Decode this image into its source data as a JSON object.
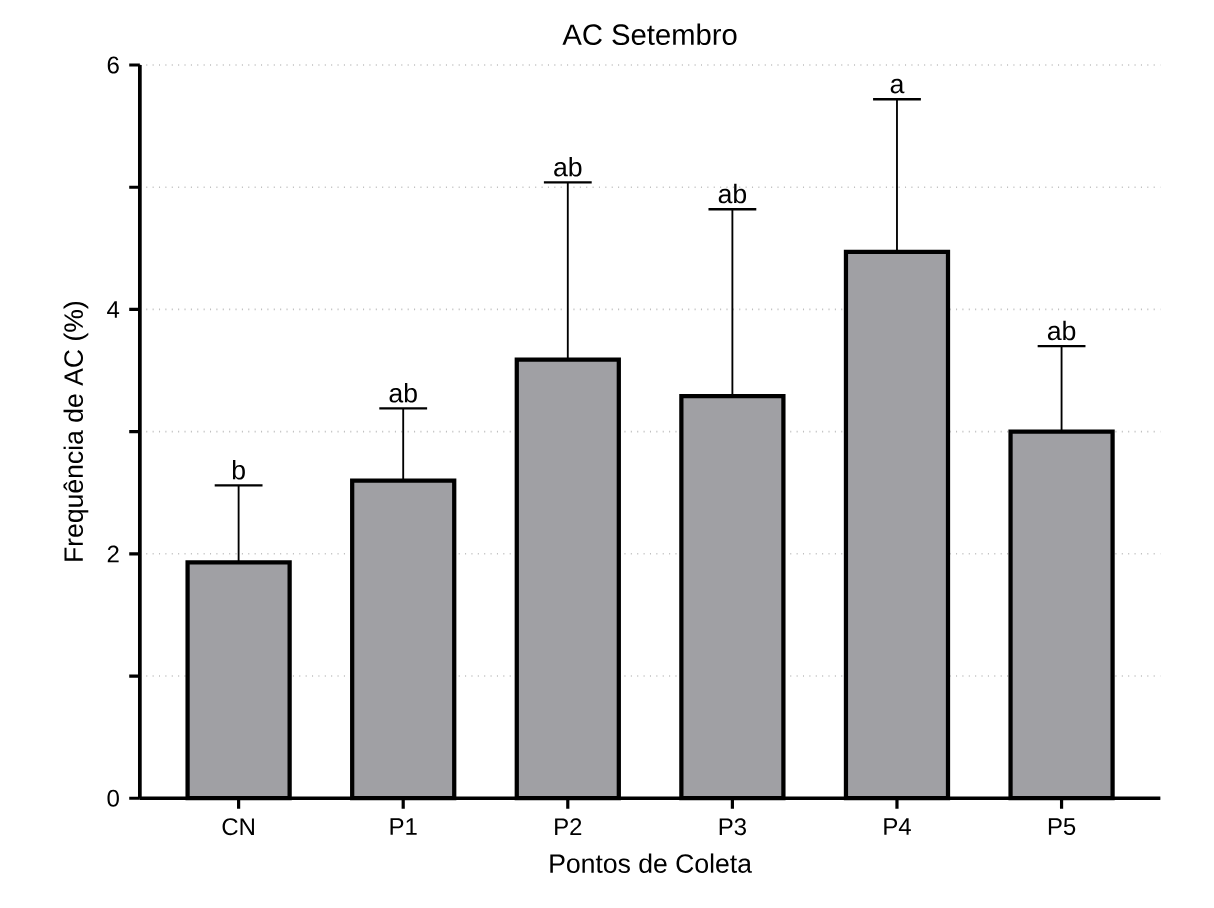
{
  "chart_data": {
    "type": "bar",
    "title": "AC Setembro",
    "xlabel": "Pontos de Coleta",
    "ylabel": "Frequência de AC (%)",
    "categories": [
      "CN",
      "P1",
      "P2",
      "P3",
      "P4",
      "P5"
    ],
    "values": [
      1.93,
      2.6,
      3.59,
      3.29,
      4.47,
      3.0
    ],
    "errors": [
      [
        1.93,
        2.56
      ],
      [
        2.6,
        3.19
      ],
      [
        3.59,
        5.04
      ],
      [
        3.29,
        4.82
      ],
      [
        4.47,
        5.72
      ],
      [
        3.0,
        3.7
      ]
    ],
    "color": "#a0a0a4",
    "ylim": [
      0,
      6
    ],
    "yticks": [
      0,
      {
        "value": 1,
        "label": null
      },
      2,
      {
        "value": 3,
        "label": null
      },
      4,
      {
        "value": 5,
        "label": null
      },
      6
    ],
    "grid": "y",
    "annotations": [
      {
        "text": "b",
        "x": "CN",
        "y": 2.56
      },
      {
        "text": "ab",
        "x": "P1",
        "y": 3.19
      },
      {
        "text": "ab",
        "x": "P2",
        "y": 5.04
      },
      {
        "text": "ab",
        "x": "P3",
        "y": 4.82
      },
      {
        "text": "a",
        "x": "P4",
        "y": 5.72
      },
      {
        "text": "ab",
        "x": "P5",
        "y": 3.7
      }
    ]
  }
}
